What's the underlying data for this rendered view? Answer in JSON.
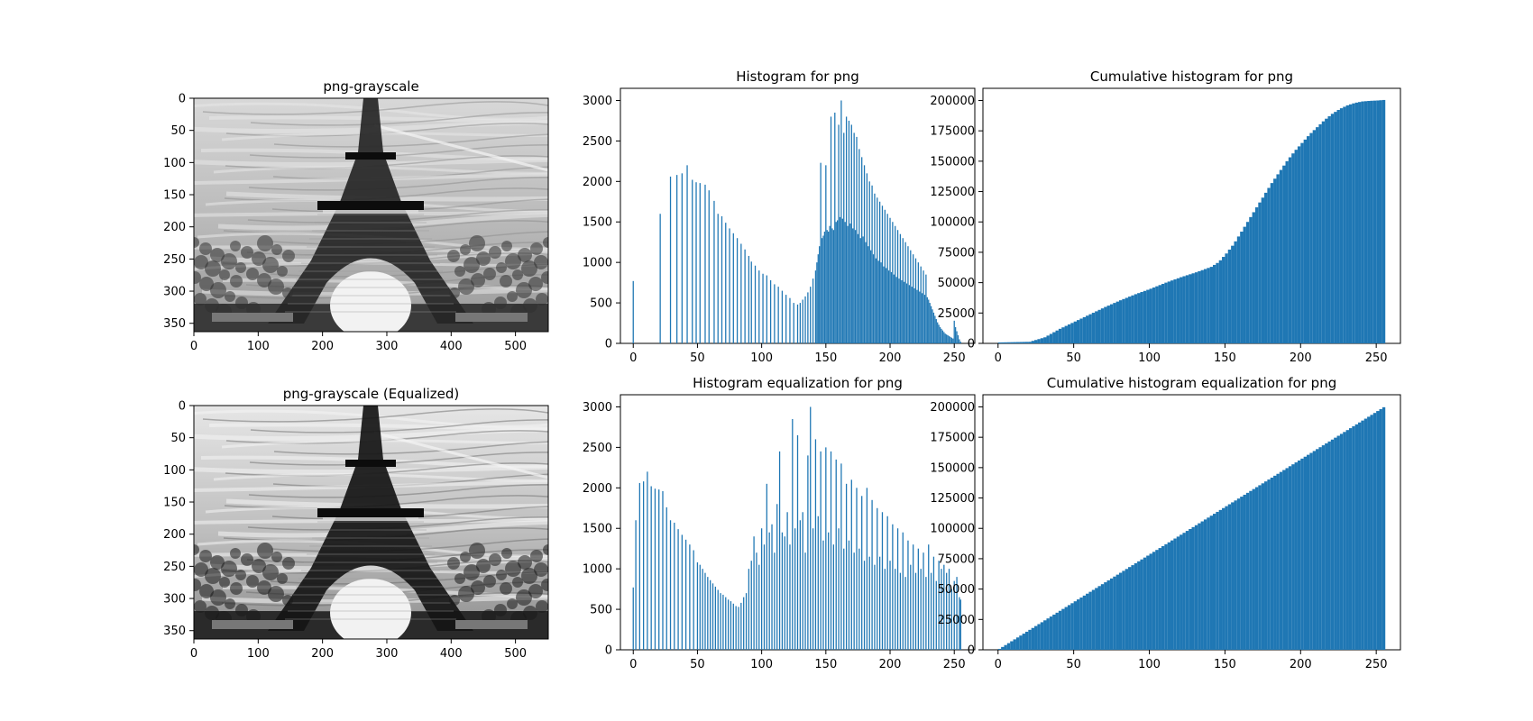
{
  "figure": {
    "accent_color": "#1f77b4",
    "panels": [
      {
        "id": "img1",
        "title": "png-grayscale"
      },
      {
        "id": "img2",
        "title": "png-grayscale (Equalized)"
      }
    ]
  },
  "chart_data": [
    {
      "id": "img1",
      "type": "image",
      "title": "png-grayscale",
      "image": "grayscale photo of the Eiffel Tower",
      "xlim": [
        0,
        551
      ],
      "ylim": [
        363,
        0
      ],
      "xticks": [
        0,
        100,
        200,
        300,
        400,
        500
      ],
      "yticks": [
        0,
        50,
        100,
        150,
        200,
        250,
        300,
        350
      ]
    },
    {
      "id": "hist1",
      "type": "bar",
      "title": "Histogram for png",
      "color": "#1f77b4",
      "xlim": [
        -10,
        266
      ],
      "ylim": [
        0,
        3150
      ],
      "xticks": [
        0,
        50,
        100,
        150,
        200,
        250
      ],
      "yticks": [
        0,
        500,
        1000,
        1500,
        2000,
        2500,
        3000
      ],
      "points": [
        [
          0,
          770
        ],
        [
          21,
          1600
        ],
        [
          29,
          2060
        ],
        [
          34,
          2080
        ],
        [
          38,
          2100
        ],
        [
          42,
          2200
        ],
        [
          46,
          2020
        ],
        [
          49,
          1990
        ],
        [
          52,
          1980
        ],
        [
          56,
          1960
        ],
        [
          59,
          1890
        ],
        [
          63,
          1760
        ],
        [
          66,
          1600
        ],
        [
          69,
          1570
        ],
        [
          72,
          1490
        ],
        [
          75,
          1420
        ],
        [
          78,
          1360
        ],
        [
          81,
          1300
        ],
        [
          84,
          1230
        ],
        [
          87,
          1160
        ],
        [
          90,
          1080
        ],
        [
          92,
          1010
        ],
        [
          95,
          960
        ],
        [
          98,
          900
        ],
        [
          101,
          860
        ],
        [
          104,
          840
        ],
        [
          107,
          780
        ],
        [
          110,
          730
        ],
        [
          113,
          700
        ],
        [
          116,
          650
        ],
        [
          119,
          600
        ],
        [
          122,
          560
        ],
        [
          125,
          500
        ],
        [
          128,
          480
        ],
        [
          130,
          500
        ],
        [
          132,
          540
        ],
        [
          134,
          580
        ],
        [
          136,
          630
        ],
        [
          138,
          700
        ],
        [
          140,
          800
        ],
        [
          142,
          900
        ],
        [
          143,
          1000
        ],
        [
          144,
          1100
        ],
        [
          145,
          1200
        ],
        [
          146,
          2230
        ],
        [
          147,
          1300
        ],
        [
          148,
          1330
        ],
        [
          149,
          1380
        ],
        [
          150,
          2200
        ],
        [
          151,
          1400
        ],
        [
          152,
          1380
        ],
        [
          153,
          1450
        ],
        [
          154,
          2800
        ],
        [
          155,
          1420
        ],
        [
          156,
          1400
        ],
        [
          157,
          2850
        ],
        [
          158,
          1500
        ],
        [
          159,
          1520
        ],
        [
          160,
          2700
        ],
        [
          161,
          1560
        ],
        [
          162,
          3000
        ],
        [
          163,
          1540
        ],
        [
          164,
          2600
        ],
        [
          165,
          1500
        ],
        [
          166,
          2800
        ],
        [
          167,
          1450
        ],
        [
          168,
          2750
        ],
        [
          169,
          1480
        ],
        [
          170,
          2700
        ],
        [
          171,
          1420
        ],
        [
          172,
          2600
        ],
        [
          173,
          1400
        ],
        [
          174,
          2550
        ],
        [
          175,
          1350
        ],
        [
          176,
          2400
        ],
        [
          177,
          1300
        ],
        [
          178,
          2300
        ],
        [
          179,
          1320
        ],
        [
          180,
          2200
        ],
        [
          181,
          1250
        ],
        [
          182,
          2100
        ],
        [
          183,
          1200
        ],
        [
          184,
          2000
        ],
        [
          185,
          1150
        ],
        [
          186,
          1950
        ],
        [
          187,
          1100
        ],
        [
          188,
          1850
        ],
        [
          189,
          1050
        ],
        [
          190,
          1800
        ],
        [
          191,
          1020
        ],
        [
          192,
          1750
        ],
        [
          193,
          1000
        ],
        [
          194,
          1700
        ],
        [
          195,
          950
        ],
        [
          196,
          1650
        ],
        [
          197,
          930
        ],
        [
          198,
          1600
        ],
        [
          199,
          900
        ],
        [
          200,
          1550
        ],
        [
          201,
          880
        ],
        [
          202,
          1500
        ],
        [
          203,
          850
        ],
        [
          204,
          1450
        ],
        [
          205,
          820
        ],
        [
          206,
          1400
        ],
        [
          207,
          800
        ],
        [
          208,
          1350
        ],
        [
          209,
          780
        ],
        [
          210,
          1300
        ],
        [
          211,
          760
        ],
        [
          212,
          1250
        ],
        [
          213,
          740
        ],
        [
          214,
          1200
        ],
        [
          215,
          720
        ],
        [
          216,
          1150
        ],
        [
          217,
          700
        ],
        [
          218,
          1100
        ],
        [
          219,
          680
        ],
        [
          220,
          1050
        ],
        [
          221,
          660
        ],
        [
          222,
          1000
        ],
        [
          223,
          640
        ],
        [
          224,
          950
        ],
        [
          225,
          620
        ],
        [
          226,
          900
        ],
        [
          227,
          600
        ],
        [
          228,
          850
        ],
        [
          229,
          570
        ],
        [
          230,
          540
        ],
        [
          231,
          500
        ],
        [
          232,
          460
        ],
        [
          233,
          420
        ],
        [
          234,
          380
        ],
        [
          235,
          340
        ],
        [
          236,
          300
        ],
        [
          237,
          260
        ],
        [
          238,
          230
        ],
        [
          239,
          200
        ],
        [
          240,
          180
        ],
        [
          241,
          160
        ],
        [
          242,
          140
        ],
        [
          243,
          120
        ],
        [
          244,
          110
        ],
        [
          245,
          100
        ],
        [
          246,
          90
        ],
        [
          247,
          80
        ],
        [
          248,
          70
        ],
        [
          249,
          60
        ],
        [
          250,
          280
        ],
        [
          251,
          200
        ],
        [
          252,
          150
        ],
        [
          253,
          100
        ],
        [
          254,
          50
        ],
        [
          255,
          20
        ]
      ]
    },
    {
      "id": "cum1",
      "type": "area",
      "title": "Cumulative histogram for png",
      "color": "#1f77b4",
      "xlim": [
        -10,
        266
      ],
      "ylim": [
        0,
        210000
      ],
      "xticks": [
        0,
        50,
        100,
        150,
        200,
        250
      ],
      "yticks": [
        0,
        25000,
        50000,
        75000,
        100000,
        125000,
        150000,
        175000,
        200000
      ],
      "points": [
        [
          0,
          770
        ],
        [
          20,
          1300
        ],
        [
          30,
          5000
        ],
        [
          40,
          12000
        ],
        [
          50,
          18000
        ],
        [
          60,
          24000
        ],
        [
          70,
          30000
        ],
        [
          80,
          35500
        ],
        [
          90,
          40500
        ],
        [
          100,
          45000
        ],
        [
          110,
          50000
        ],
        [
          120,
          54500
        ],
        [
          130,
          58500
        ],
        [
          140,
          63000
        ],
        [
          145,
          67000
        ],
        [
          150,
          74000
        ],
        [
          155,
          82000
        ],
        [
          160,
          92000
        ],
        [
          165,
          102000
        ],
        [
          170,
          112000
        ],
        [
          175,
          122000
        ],
        [
          180,
          132000
        ],
        [
          185,
          141000
        ],
        [
          190,
          150000
        ],
        [
          195,
          158000
        ],
        [
          200,
          165000
        ],
        [
          205,
          172000
        ],
        [
          210,
          178000
        ],
        [
          215,
          184000
        ],
        [
          220,
          189000
        ],
        [
          225,
          193000
        ],
        [
          230,
          196000
        ],
        [
          235,
          198000
        ],
        [
          240,
          199200
        ],
        [
          245,
          199700
        ],
        [
          250,
          200000
        ],
        [
          255,
          200500
        ]
      ]
    },
    {
      "id": "img2",
      "type": "image",
      "title": "png-grayscale (Equalized)",
      "image": "histogram-equalized grayscale photo of the Eiffel Tower",
      "xlim": [
        0,
        551
      ],
      "ylim": [
        363,
        0
      ],
      "xticks": [
        0,
        100,
        200,
        300,
        400,
        500
      ],
      "yticks": [
        0,
        50,
        100,
        150,
        200,
        250,
        300,
        350
      ]
    },
    {
      "id": "hist2",
      "type": "bar",
      "title": "Histogram equalization for png",
      "color": "#1f77b4",
      "xlim": [
        -10,
        266
      ],
      "ylim": [
        0,
        3150
      ],
      "xticks": [
        0,
        50,
        100,
        150,
        200,
        250
      ],
      "yticks": [
        0,
        500,
        1000,
        1500,
        2000,
        2500,
        3000
      ],
      "points": [
        [
          0,
          770
        ],
        [
          2,
          1600
        ],
        [
          5,
          2060
        ],
        [
          8,
          2080
        ],
        [
          11,
          2200
        ],
        [
          14,
          2020
        ],
        [
          17,
          1990
        ],
        [
          20,
          1980
        ],
        [
          23,
          1960
        ],
        [
          26,
          1760
        ],
        [
          29,
          1600
        ],
        [
          32,
          1570
        ],
        [
          35,
          1490
        ],
        [
          38,
          1420
        ],
        [
          41,
          1360
        ],
        [
          44,
          1300
        ],
        [
          47,
          1230
        ],
        [
          50,
          1080
        ],
        [
          52,
          1050
        ],
        [
          54,
          1000
        ],
        [
          56,
          950
        ],
        [
          58,
          900
        ],
        [
          60,
          860
        ],
        [
          62,
          820
        ],
        [
          64,
          780
        ],
        [
          66,
          740
        ],
        [
          68,
          700
        ],
        [
          70,
          680
        ],
        [
          72,
          650
        ],
        [
          74,
          620
        ],
        [
          76,
          600
        ],
        [
          78,
          570
        ],
        [
          80,
          540
        ],
        [
          82,
          530
        ],
        [
          84,
          580
        ],
        [
          86,
          650
        ],
        [
          88,
          700
        ],
        [
          90,
          1000
        ],
        [
          92,
          1100
        ],
        [
          94,
          1400
        ],
        [
          96,
          1200
        ],
        [
          98,
          1050
        ],
        [
          100,
          1500
        ],
        [
          102,
          1300
        ],
        [
          104,
          2050
        ],
        [
          106,
          1450
        ],
        [
          108,
          1550
        ],
        [
          110,
          1200
        ],
        [
          112,
          1800
        ],
        [
          114,
          2450
        ],
        [
          116,
          1450
        ],
        [
          118,
          1400
        ],
        [
          120,
          1700
        ],
        [
          122,
          1300
        ],
        [
          124,
          2850
        ],
        [
          126,
          1500
        ],
        [
          128,
          2650
        ],
        [
          130,
          1600
        ],
        [
          132,
          1700
        ],
        [
          134,
          1200
        ],
        [
          136,
          2400
        ],
        [
          138,
          3000
        ],
        [
          140,
          1500
        ],
        [
          142,
          2600
        ],
        [
          144,
          1650
        ],
        [
          146,
          2450
        ],
        [
          148,
          1350
        ],
        [
          150,
          2500
        ],
        [
          152,
          1450
        ],
        [
          154,
          2450
        ],
        [
          156,
          1300
        ],
        [
          158,
          2350
        ],
        [
          160,
          1500
        ],
        [
          162,
          2300
        ],
        [
          164,
          1250
        ],
        [
          166,
          2050
        ],
        [
          168,
          1350
        ],
        [
          170,
          2100
        ],
        [
          172,
          1200
        ],
        [
          174,
          2000
        ],
        [
          176,
          1250
        ],
        [
          178,
          1900
        ],
        [
          180,
          1100
        ],
        [
          182,
          2000
        ],
        [
          184,
          1150
        ],
        [
          186,
          1850
        ],
        [
          188,
          1050
        ],
        [
          190,
          1750
        ],
        [
          192,
          1150
        ],
        [
          194,
          1700
        ],
        [
          196,
          1000
        ],
        [
          198,
          1650
        ],
        [
          200,
          1100
        ],
        [
          202,
          1550
        ],
        [
          204,
          1000
        ],
        [
          206,
          1500
        ],
        [
          208,
          950
        ],
        [
          210,
          1450
        ],
        [
          212,
          900
        ],
        [
          214,
          1350
        ],
        [
          216,
          1050
        ],
        [
          218,
          1300
        ],
        [
          220,
          950
        ],
        [
          222,
          1250
        ],
        [
          224,
          1000
        ],
        [
          226,
          1200
        ],
        [
          228,
          900
        ],
        [
          230,
          1300
        ],
        [
          232,
          950
        ],
        [
          234,
          1150
        ],
        [
          236,
          850
        ],
        [
          238,
          1100
        ],
        [
          240,
          1000
        ],
        [
          242,
          1050
        ],
        [
          244,
          950
        ],
        [
          246,
          1000
        ],
        [
          248,
          750
        ],
        [
          250,
          850
        ],
        [
          252,
          900
        ],
        [
          254,
          650
        ],
        [
          255,
          620
        ]
      ]
    },
    {
      "id": "cum2",
      "type": "area",
      "title": "Cumulative histogram equalization for png",
      "color": "#1f77b4",
      "xlim": [
        -10,
        266
      ],
      "ylim": [
        0,
        210000
      ],
      "xticks": [
        0,
        50,
        100,
        150,
        200,
        250
      ],
      "yticks": [
        0,
        25000,
        50000,
        75000,
        100000,
        125000,
        150000,
        175000,
        200000
      ],
      "points": [
        [
          0,
          770
        ],
        [
          255,
          200500
        ]
      ]
    }
  ]
}
